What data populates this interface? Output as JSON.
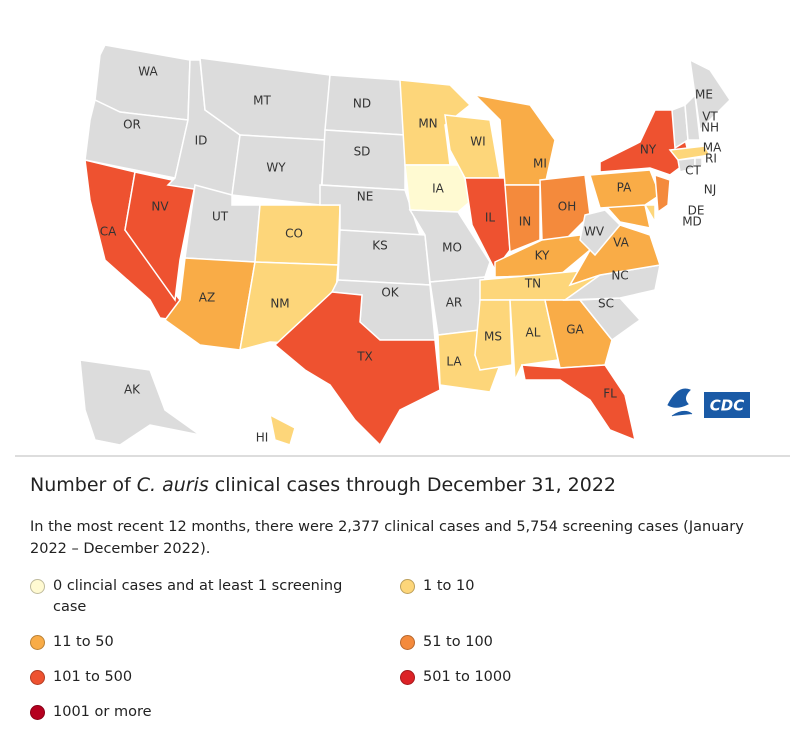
{
  "map": {
    "states": [
      {
        "label": "WA",
        "level": null
      },
      {
        "label": "OR",
        "level": null
      },
      {
        "label": "CA",
        "level": 4
      },
      {
        "label": "NV",
        "level": 4
      },
      {
        "label": "ID",
        "level": null
      },
      {
        "label": "MT",
        "level": null
      },
      {
        "label": "WY",
        "level": null
      },
      {
        "label": "UT",
        "level": null
      },
      {
        "label": "AZ",
        "level": 2
      },
      {
        "label": "CO",
        "level": 1
      },
      {
        "label": "NM",
        "level": 1
      },
      {
        "label": "ND",
        "level": null
      },
      {
        "label": "SD",
        "level": null
      },
      {
        "label": "NE",
        "level": null
      },
      {
        "label": "KS",
        "level": null
      },
      {
        "label": "OK",
        "level": null
      },
      {
        "label": "TX",
        "level": 4
      },
      {
        "label": "MN",
        "level": 1
      },
      {
        "label": "IA",
        "level": 0
      },
      {
        "label": "MO",
        "level": null
      },
      {
        "label": "AR",
        "level": null
      },
      {
        "label": "LA",
        "level": 1
      },
      {
        "label": "WI",
        "level": 1
      },
      {
        "label": "IL",
        "level": 4
      },
      {
        "label": "MI",
        "level": 2
      },
      {
        "label": "IN",
        "level": 3
      },
      {
        "label": "OH",
        "level": 3
      },
      {
        "label": "KY",
        "level": 2
      },
      {
        "label": "TN",
        "level": 1
      },
      {
        "label": "MS",
        "level": 1
      },
      {
        "label": "AL",
        "level": 1
      },
      {
        "label": "GA",
        "level": 2
      },
      {
        "label": "FL",
        "level": 4
      },
      {
        "label": "SC",
        "level": null
      },
      {
        "label": "NC",
        "level": null
      },
      {
        "label": "VA",
        "level": 2
      },
      {
        "label": "WV",
        "level": null
      },
      {
        "label": "MD",
        "level": 2
      },
      {
        "label": "DE",
        "level": 1
      },
      {
        "label": "PA",
        "level": 2
      },
      {
        "label": "NJ",
        "level": 3
      },
      {
        "label": "NY",
        "level": 4
      },
      {
        "label": "CT",
        "level": null
      },
      {
        "label": "RI",
        "level": null
      },
      {
        "label": "MA",
        "level": 1
      },
      {
        "label": "VT",
        "level": null
      },
      {
        "label": "NH",
        "level": null
      },
      {
        "label": "ME",
        "level": null
      },
      {
        "label": "AK",
        "level": null
      },
      {
        "label": "HI",
        "level": 1
      }
    ]
  },
  "logo": "CDC",
  "title": {
    "before": "Number of ",
    "italic": "C. auris",
    "after": " clinical cases through December 31, 2022"
  },
  "subtitle": "In the most recent 12 months, there were 2,377 clinical cases and 5,754 screening cases (January 2022 – December 2022).",
  "legend": [
    {
      "label": "0 clincial cases and at least 1 screening case",
      "color": "#fffad2"
    },
    {
      "label": "1 to 10",
      "color": "#fdd67a"
    },
    {
      "label": "11 to 50",
      "color": "#f9ac47"
    },
    {
      "label": "51 to 100",
      "color": "#f48a3c"
    },
    {
      "label": "101 to 500",
      "color": "#ee5230"
    },
    {
      "label": "501 to 1000",
      "color": "#dc2226"
    },
    {
      "label": "1001 or more",
      "color": "#b5001f"
    }
  ]
}
